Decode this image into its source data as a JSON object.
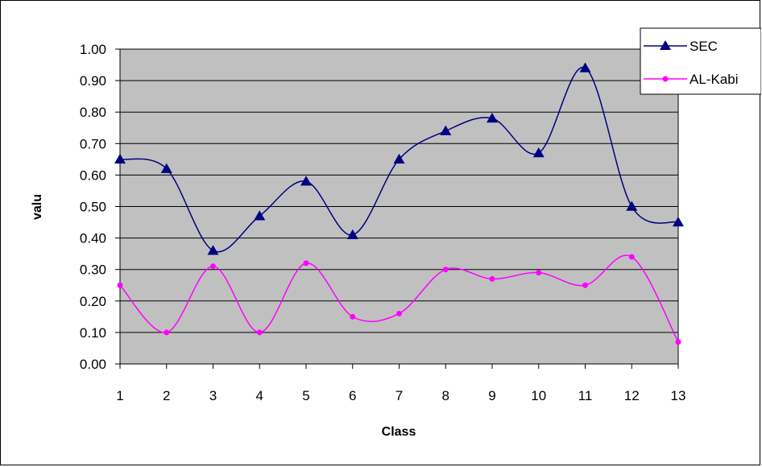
{
  "chart_data": {
    "type": "line",
    "title": "",
    "xlabel": "Class",
    "ylabel": "valu",
    "categories": [
      "1",
      "2",
      "3",
      "4",
      "5",
      "6",
      "7",
      "8",
      "9",
      "10",
      "11",
      "12",
      "13"
    ],
    "ylim": [
      0,
      1.0
    ],
    "yticks": [
      "0.00",
      "0.10",
      "0.20",
      "0.30",
      "0.40",
      "0.50",
      "0.60",
      "0.70",
      "0.80",
      "0.90",
      "1.00"
    ],
    "grid": true,
    "plot_background": "#c0c0c0",
    "legend_position": "top-right",
    "series": [
      {
        "name": "SEC",
        "color": "#000080",
        "marker": "triangle",
        "values": [
          0.65,
          0.62,
          0.36,
          0.47,
          0.58,
          0.41,
          0.65,
          0.74,
          0.78,
          0.67,
          0.94,
          0.5,
          0.45
        ]
      },
      {
        "name": "AL-Kabi",
        "color": "#ff00ff",
        "marker": "circle",
        "values": [
          0.25,
          0.1,
          0.31,
          0.1,
          0.32,
          0.15,
          0.16,
          0.3,
          0.27,
          0.29,
          0.25,
          0.34,
          0.07
        ]
      }
    ]
  }
}
